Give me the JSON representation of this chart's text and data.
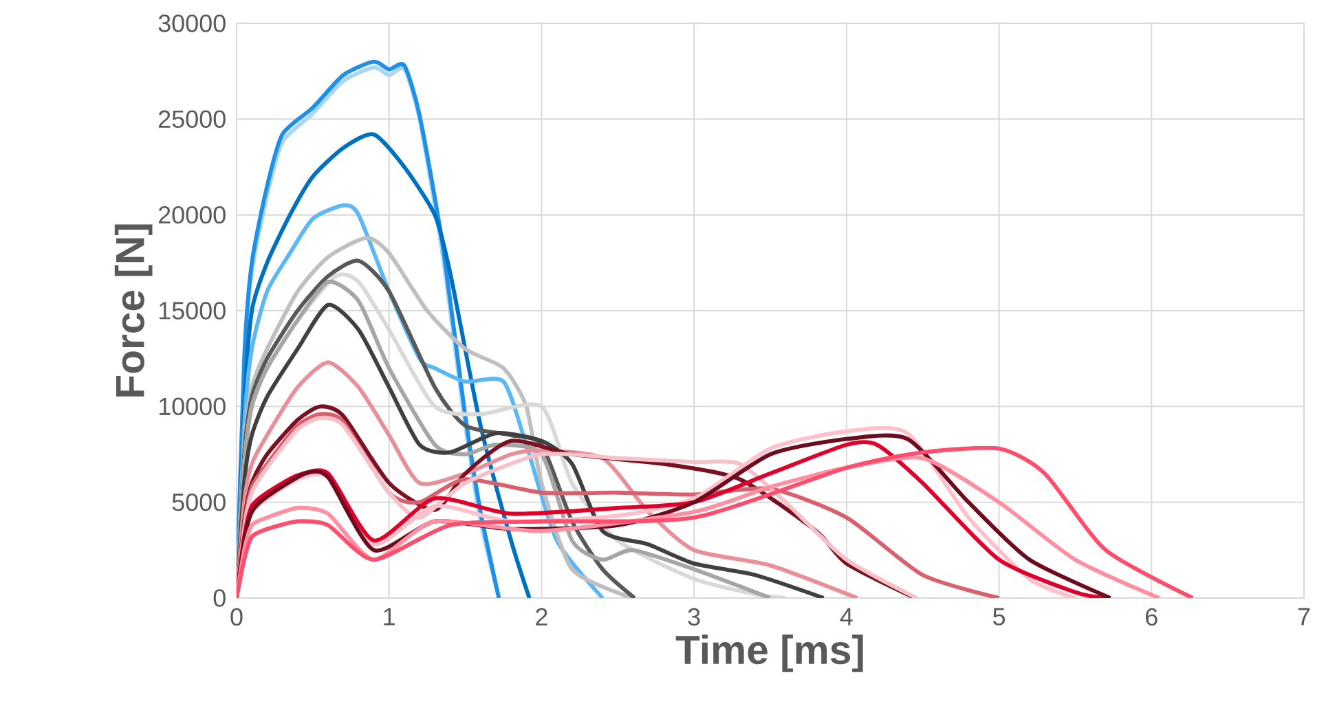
{
  "chart_data": {
    "type": "line",
    "xlabel": "Time [ms]",
    "ylabel": "Force [N]",
    "xlim": [
      0,
      7
    ],
    "xticks": [
      0,
      1,
      2,
      3,
      4,
      5,
      6,
      7
    ],
    "ylim": [
      0,
      30000
    ],
    "yticks": [
      0,
      5000,
      10000,
      15000,
      20000,
      25000,
      30000
    ],
    "grid": true,
    "series": [
      {
        "color": "#a9d6f5",
        "x": [
          0,
          0.05,
          0.1,
          0.2,
          0.3,
          0.5,
          0.7,
          0.9,
          1.0,
          1.1,
          1.2,
          1.35,
          1.5,
          1.6,
          1.72
        ],
        "values": [
          0,
          12000,
          17000,
          21000,
          23800,
          25300,
          27000,
          27700,
          27300,
          27600,
          25000,
          18000,
          9000,
          4000,
          0
        ]
      },
      {
        "color": "#1e90e8",
        "x": [
          0,
          0.05,
          0.1,
          0.2,
          0.3,
          0.5,
          0.7,
          0.9,
          1.0,
          1.1,
          1.2,
          1.35,
          1.5,
          1.6,
          1.72
        ],
        "values": [
          0,
          12500,
          17500,
          21500,
          24200,
          25600,
          27300,
          28000,
          27600,
          27800,
          25200,
          18500,
          9500,
          4500,
          0
        ]
      },
      {
        "color": "#0070c0",
        "x": [
          0,
          0.05,
          0.1,
          0.2,
          0.35,
          0.5,
          0.7,
          0.9,
          1.1,
          1.3,
          1.4,
          1.6,
          1.8,
          1.92
        ],
        "values": [
          0,
          10000,
          15000,
          17500,
          20000,
          22000,
          23500,
          24200,
          22500,
          20000,
          17000,
          9000,
          3000,
          0
        ]
      },
      {
        "color": "#5bb8f5",
        "x": [
          0,
          0.05,
          0.1,
          0.2,
          0.35,
          0.5,
          0.7,
          0.8,
          1.0,
          1.2,
          1.3,
          1.5,
          1.75,
          1.9,
          2.1,
          2.4
        ],
        "values": [
          0,
          9000,
          13000,
          16000,
          18000,
          19800,
          20500,
          20000,
          16000,
          12500,
          12000,
          11300,
          11300,
          8000,
          3000,
          0
        ]
      },
      {
        "color": "#bfbfbf",
        "x": [
          0,
          0.05,
          0.1,
          0.2,
          0.4,
          0.6,
          0.85,
          1.0,
          1.25,
          1.5,
          1.75,
          1.9,
          2.0,
          2.2,
          2.6
        ],
        "values": [
          0,
          8000,
          11000,
          13000,
          16000,
          17800,
          18800,
          18000,
          15000,
          13000,
          12000,
          10000,
          6000,
          1500,
          0
        ]
      },
      {
        "color": "#595959",
        "x": [
          0,
          0.05,
          0.1,
          0.2,
          0.4,
          0.6,
          0.8,
          1.0,
          1.3,
          1.5,
          1.8,
          2.0,
          2.2,
          2.4,
          2.61
        ],
        "values": [
          0,
          7500,
          10500,
          12500,
          15000,
          16800,
          17600,
          16000,
          11000,
          9000,
          8500,
          8000,
          4000,
          1500,
          0
        ]
      },
      {
        "color": "#d9d9d9",
        "x": [
          0,
          0.05,
          0.1,
          0.2,
          0.4,
          0.65,
          0.8,
          1.0,
          1.3,
          1.6,
          2.0,
          2.2,
          2.5,
          3.0,
          3.4,
          3.6
        ],
        "values": [
          0,
          7000,
          10000,
          12000,
          14500,
          16800,
          16500,
          14000,
          10000,
          9600,
          10000,
          6000,
          3000,
          1000,
          200,
          0
        ]
      },
      {
        "color": "#a6a6a6",
        "x": [
          0,
          0.05,
          0.1,
          0.2,
          0.4,
          0.6,
          0.8,
          1.0,
          1.3,
          1.5,
          1.7,
          2.0,
          2.2,
          2.4,
          2.6,
          3.0,
          3.5
        ],
        "values": [
          0,
          7000,
          10000,
          12000,
          14500,
          16500,
          15500,
          12000,
          8000,
          7500,
          8000,
          7500,
          3000,
          2000,
          2500,
          1500,
          0
        ]
      },
      {
        "color": "#404040",
        "x": [
          0,
          0.05,
          0.1,
          0.2,
          0.4,
          0.6,
          0.8,
          1.0,
          1.2,
          1.4,
          1.7,
          2.0,
          2.2,
          2.4,
          2.7,
          3.0,
          3.4,
          3.85
        ],
        "values": [
          0,
          6000,
          8500,
          10500,
          13000,
          15300,
          14000,
          11000,
          8000,
          7600,
          8600,
          8200,
          7000,
          3500,
          2800,
          1800,
          1200,
          0
        ]
      },
      {
        "color": "#e8909a",
        "x": [
          0,
          0.05,
          0.1,
          0.2,
          0.4,
          0.6,
          0.8,
          1.0,
          1.2,
          1.5,
          1.8,
          2.0,
          2.4,
          2.7,
          3.0,
          3.5,
          4.07
        ],
        "values": [
          0,
          5000,
          7000,
          8500,
          11000,
          12300,
          11000,
          8500,
          6000,
          6500,
          7500,
          7700,
          7300,
          4500,
          2500,
          1700,
          0
        ]
      },
      {
        "color": "#7b1022",
        "x": [
          0,
          0.05,
          0.1,
          0.2,
          0.4,
          0.55,
          0.7,
          1.0,
          1.3,
          1.5,
          1.8,
          2.2,
          2.8,
          3.3,
          3.8,
          4.0,
          4.45
        ],
        "values": [
          0,
          4000,
          6000,
          7500,
          9300,
          10000,
          9500,
          6000,
          4600,
          6500,
          8200,
          7500,
          7000,
          6200,
          3500,
          1800,
          0
        ]
      },
      {
        "color": "#d9606e",
        "x": [
          0,
          0.05,
          0.1,
          0.2,
          0.4,
          0.55,
          0.7,
          1.0,
          1.2,
          1.5,
          2.0,
          2.5,
          3.0,
          3.5,
          4.0,
          4.5,
          5.0
        ],
        "values": [
          0,
          3800,
          5800,
          7000,
          9000,
          9600,
          9200,
          5500,
          5000,
          6200,
          5500,
          5500,
          5400,
          5700,
          4200,
          1200,
          0
        ]
      },
      {
        "color": "#f4c2c8",
        "x": [
          0,
          0.05,
          0.1,
          0.2,
          0.4,
          0.55,
          0.7,
          1.0,
          1.2,
          1.5,
          2.0,
          2.5,
          3.0,
          3.3,
          3.6,
          4.0,
          4.46
        ],
        "values": [
          0,
          3600,
          5500,
          6800,
          8800,
          9400,
          9000,
          5500,
          4200,
          6000,
          7500,
          7300,
          7100,
          7000,
          5000,
          2000,
          0
        ]
      },
      {
        "color": "#ffc0cb",
        "x": [
          0,
          0.05,
          0.1,
          0.2,
          0.4,
          0.6,
          0.9,
          1.3,
          1.8,
          2.5,
          3.0,
          3.5,
          4.0,
          4.4,
          4.8,
          5.2,
          5.5
        ],
        "values": [
          0,
          3000,
          4500,
          5200,
          6200,
          6300,
          2800,
          4800,
          4000,
          4300,
          5200,
          7800,
          8700,
          8600,
          4200,
          1000,
          0
        ]
      },
      {
        "color": "#e0002a",
        "x": [
          0,
          0.05,
          0.1,
          0.2,
          0.4,
          0.6,
          0.9,
          1.3,
          1.8,
          2.5,
          3.0,
          3.5,
          4.0,
          4.2,
          4.5,
          5.0,
          5.5,
          5.7
        ],
        "values": [
          0,
          3200,
          4800,
          5500,
          6400,
          6500,
          3000,
          5200,
          4400,
          4700,
          5000,
          6500,
          8000,
          8000,
          6000,
          2000,
          300,
          0
        ]
      },
      {
        "color": "#6e0c1f",
        "x": [
          0,
          0.05,
          0.1,
          0.2,
          0.45,
          0.6,
          0.9,
          1.3,
          1.8,
          2.5,
          3.0,
          3.5,
          4.0,
          4.4,
          4.8,
          5.2,
          5.73
        ],
        "values": [
          0,
          3000,
          4500,
          5300,
          6500,
          6300,
          2500,
          4000,
          3600,
          3800,
          5000,
          7500,
          8300,
          8300,
          5000,
          2000,
          0
        ]
      },
      {
        "color": "#ff8fa3",
        "x": [
          0,
          0.05,
          0.1,
          0.2,
          0.4,
          0.6,
          0.9,
          1.3,
          2.0,
          3.0,
          3.5,
          4.0,
          4.5,
          5.0,
          5.5,
          6.05
        ],
        "values": [
          0,
          2500,
          3800,
          4200,
          4700,
          4400,
          2000,
          4000,
          3500,
          4500,
          5800,
          6800,
          7300,
          5000,
          2000,
          0
        ]
      },
      {
        "color": "#ff4d6d",
        "x": [
          0,
          0.05,
          0.1,
          0.2,
          0.4,
          0.6,
          0.9,
          1.4,
          2.0,
          3.0,
          4.0,
          4.5,
          5.0,
          5.3,
          5.7,
          6.27
        ],
        "values": [
          0,
          2000,
          3200,
          3600,
          4000,
          3800,
          2000,
          3800,
          4000,
          4200,
          6800,
          7600,
          7800,
          6500,
          2500,
          0
        ]
      }
    ]
  }
}
